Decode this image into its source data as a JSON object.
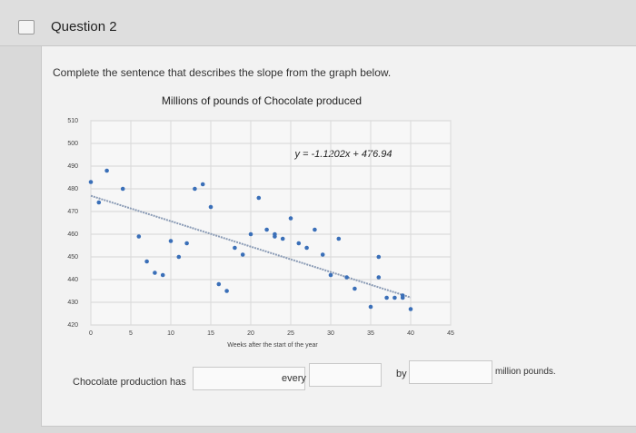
{
  "header": {
    "title": "Question 2"
  },
  "prompt": "Complete the sentence that describes the slope from the graph below.",
  "chart_data": {
    "type": "scatter",
    "title": "Millions of pounds of Chocolate produced",
    "x_label": "Weeks after the start of the year",
    "annotation": "y = -1.1202x + 476.94",
    "trendline": {
      "slope": -1.1202,
      "intercept": 476.94
    },
    "x": [
      0,
      1,
      2,
      4,
      6,
      7,
      8,
      9,
      10,
      11,
      12,
      13,
      14,
      15,
      16,
      17,
      18,
      19,
      20,
      21,
      22,
      23,
      23,
      24,
      25,
      26,
      27,
      28,
      29,
      30,
      31,
      32,
      33,
      35,
      36,
      36,
      37,
      38,
      39,
      39,
      40
    ],
    "series": [
      {
        "color": "#3a6fb8",
        "values": [
          483,
          474,
          488,
          480,
          459,
          448,
          443,
          442,
          457,
          450,
          456,
          480,
          482,
          472,
          438,
          435,
          454,
          451,
          460,
          476,
          462,
          460,
          459,
          458,
          467,
          456,
          454,
          462,
          451,
          442,
          458,
          441,
          436,
          428,
          450,
          441,
          432,
          432,
          432,
          433,
          427
        ]
      }
    ],
    "xlim": [
      0,
      45
    ],
    "xticks": [
      0,
      5,
      10,
      15,
      20,
      25,
      30,
      35,
      40,
      45
    ],
    "ylim": [
      420,
      510
    ],
    "yticks": [
      420,
      430,
      440,
      450,
      460,
      470,
      480,
      490,
      500,
      510
    ],
    "grid": true
  },
  "sentence": {
    "part1": "Chocolate production has",
    "part2": "every",
    "part3": "by",
    "part4": "million pounds."
  }
}
